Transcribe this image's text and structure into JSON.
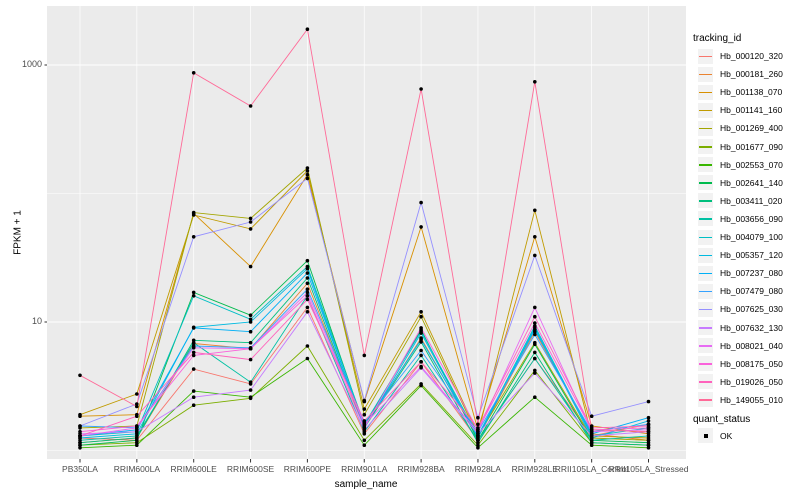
{
  "figure": {
    "background": "#FFFFFF",
    "panel_background": "#EBEBEB",
    "gridline_color": "#FFFFFF",
    "axis_text_color": "#4D4D4D",
    "tick_color": "#333333",
    "point_color": "#000000",
    "legend_key_background": "#F2F2F2"
  },
  "chart_data": {
    "type": "line",
    "title": "",
    "xlabel": "sample_name",
    "ylabel": "FPKM + 1",
    "y_scale": "log10",
    "grid": true,
    "legend_position": "right",
    "y_ticks": [
      {
        "label": "1000",
        "value": 1000
      },
      {
        "label": "10",
        "value": 10
      }
    ],
    "y_minor_gridlines": [
      1,
      100
    ],
    "ylim": [
      0.9,
      2200
    ],
    "categories": [
      "PB350LA",
      "RRIM600LA",
      "RRIM600LE",
      "RRIM600SE",
      "RRIM600PE",
      "RRIM901LA",
      "RRIM928BA",
      "RRIM928LA",
      "RRIM928LE",
      "RRII105LA_Control",
      "RRII105LA_Stressed"
    ],
    "series": [
      {
        "name": "Hb_000120_320",
        "color": "#F8766D",
        "values": [
          1.25,
          1.2,
          4.3,
          3.3,
          13,
          1.35,
          4.9,
          1.2,
          5.2,
          1.3,
          1.6
        ]
      },
      {
        "name": "Hb_000181_260",
        "color": "#EA8331",
        "values": [
          1.15,
          1.25,
          6.8,
          6.2,
          20,
          1.5,
          7.5,
          1.25,
          8.4,
          1.35,
          1.2
        ]
      },
      {
        "name": "Hb_001138_070",
        "color": "#D89000",
        "values": [
          1.85,
          1.9,
          70,
          27,
          140,
          2.4,
          55,
          1.45,
          46,
          1.55,
          1.35
        ]
      },
      {
        "name": "Hb_001141_160",
        "color": "#C09B00",
        "values": [
          1.9,
          2.75,
          68,
          53,
          150,
          2.1,
          12,
          1.35,
          74,
          1.3,
          1.25
        ]
      },
      {
        "name": "Hb_001269_400",
        "color": "#A3A500",
        "values": [
          1.5,
          1.55,
          71,
          64,
          158,
          1.9,
          11,
          1.3,
          6.9,
          1.25,
          1.2
        ]
      },
      {
        "name": "Hb_001677_090",
        "color": "#7CAE00",
        "values": [
          1.1,
          1.15,
          2.25,
          2.55,
          6.5,
          1.2,
          3.3,
          1.1,
          4.2,
          1.15,
          1.1
        ]
      },
      {
        "name": "Hb_002553_070",
        "color": "#39B600",
        "values": [
          1.05,
          1.1,
          2.9,
          2.6,
          5.2,
          1.1,
          3.2,
          1.05,
          2.6,
          1.1,
          1.05
        ]
      },
      {
        "name": "Hb_002641_140",
        "color": "#00BB4E",
        "values": [
          1.1,
          1.2,
          17,
          11.3,
          30,
          1.55,
          8.7,
          1.2,
          6.7,
          1.2,
          1.15
        ]
      },
      {
        "name": "Hb_003411_020",
        "color": "#00BF7D",
        "values": [
          1.15,
          1.25,
          7.2,
          6.9,
          22,
          1.5,
          7.0,
          1.15,
          5.8,
          1.15,
          1.1
        ]
      },
      {
        "name": "Hb_003656_090",
        "color": "#00C1A3",
        "values": [
          1.2,
          1.3,
          6.9,
          3.4,
          16,
          1.4,
          5.5,
          1.2,
          5.2,
          1.2,
          1.3
        ]
      },
      {
        "name": "Hb_004079_100",
        "color": "#00BFC4",
        "values": [
          1.3,
          1.4,
          16,
          10.5,
          27,
          1.6,
          8.5,
          1.3,
          9.3,
          1.3,
          1.5
        ]
      },
      {
        "name": "Hb_005357_120",
        "color": "#00BAE0",
        "values": [
          1.25,
          1.35,
          9.1,
          10,
          26,
          1.5,
          8.2,
          1.25,
          9.0,
          1.25,
          1.7
        ]
      },
      {
        "name": "Hb_007237_080",
        "color": "#00B0F6",
        "values": [
          1.3,
          1.45,
          9.0,
          8.4,
          24,
          1.55,
          7.3,
          1.3,
          8.7,
          1.35,
          1.8
        ]
      },
      {
        "name": "Hb_007479_080",
        "color": "#35A2FF",
        "values": [
          1.55,
          1.5,
          6.5,
          6.3,
          18,
          1.65,
          6.0,
          1.4,
          8.0,
          1.4,
          1.6
        ]
      },
      {
        "name": "Hb_007625_030",
        "color": "#9590FF",
        "values": [
          1.55,
          2.3,
          46,
          60,
          131,
          2.45,
          85,
          1.8,
          33,
          1.85,
          2.4
        ]
      },
      {
        "name": "Hb_007632_130",
        "color": "#C77CFF",
        "values": [
          1.35,
          1.4,
          2.6,
          2.95,
          12,
          1.45,
          4.4,
          1.35,
          4.0,
          1.3,
          1.4
        ]
      },
      {
        "name": "Hb_008021_040",
        "color": "#E76BF3",
        "values": [
          1.3,
          1.5,
          6.3,
          6.2,
          17,
          1.6,
          4.5,
          1.4,
          13,
          1.4,
          1.45
        ]
      },
      {
        "name": "Hb_008175_050",
        "color": "#FA62DB",
        "values": [
          1.4,
          1.55,
          5.5,
          6.2,
          16,
          1.5,
          9.0,
          1.45,
          9.8,
          1.45,
          1.5
        ]
      },
      {
        "name": "Hb_019026_050",
        "color": "#FF62BC",
        "values": [
          1.3,
          1.85,
          5.8,
          5.1,
          15,
          1.7,
          4.9,
          1.5,
          11,
          1.5,
          1.55
        ]
      },
      {
        "name": "Hb_149055_010",
        "color": "#FF6A98",
        "values": [
          3.85,
          2.2,
          870,
          480,
          1900,
          5.5,
          650,
          1.6,
          740,
          1.45,
          1.4
        ]
      }
    ],
    "legend": {
      "color_title": "tracking_id",
      "shape_title": "quant_status",
      "shape_items": [
        {
          "label": "OK"
        }
      ]
    }
  }
}
